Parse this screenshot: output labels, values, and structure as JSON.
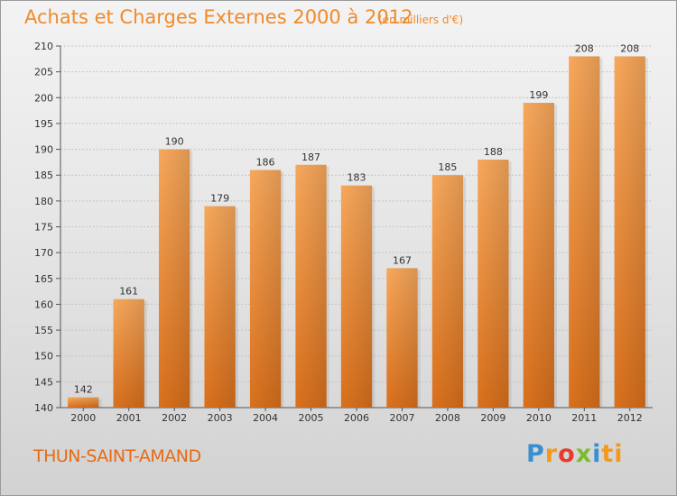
{
  "chart_data": {
    "type": "bar",
    "title": "Achats et Charges Externes 2000 à 2012",
    "subtitle": "(en milliers d'€)",
    "categories": [
      "2000",
      "2001",
      "2002",
      "2003",
      "2004",
      "2005",
      "2006",
      "2007",
      "2008",
      "2009",
      "2010",
      "2011",
      "2012"
    ],
    "values": [
      142,
      161,
      190,
      179,
      186,
      187,
      183,
      167,
      185,
      188,
      199,
      208,
      208
    ],
    "ylim": [
      140,
      210
    ],
    "yticks": [
      140,
      145,
      150,
      155,
      160,
      165,
      170,
      175,
      180,
      185,
      190,
      195,
      200,
      205,
      210
    ],
    "grid": true,
    "bar_color": "#f29a4a"
  },
  "footer": {
    "commune": "THUN-SAINT-AMAND",
    "logo": "Proxiti"
  }
}
